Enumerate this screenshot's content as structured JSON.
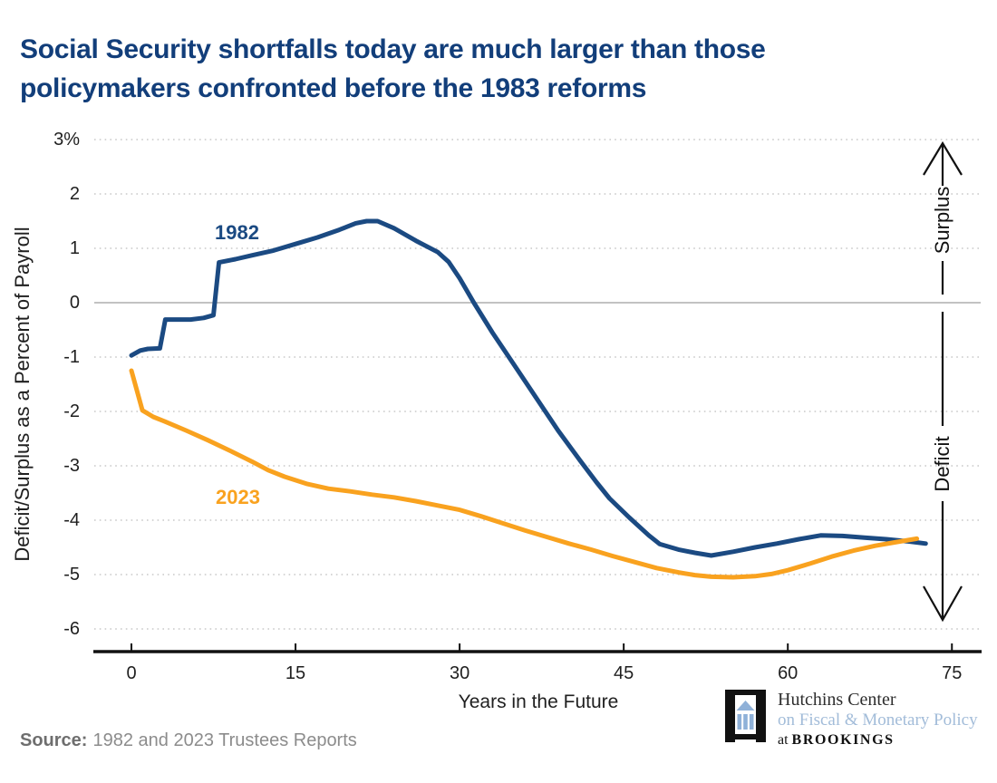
{
  "title": {
    "line1": "Social Security shortfalls today are much larger than those",
    "line2": "policymakers confronted before the 1983 reforms"
  },
  "y_axis": {
    "title": "Deficit/Surplus as a Percent of Payroll",
    "tick_labels": [
      "3%",
      "2",
      "1",
      "0",
      "-1",
      "-2",
      "-3",
      "-4",
      "-5",
      "-6"
    ]
  },
  "x_axis": {
    "title": "Years in the Future",
    "tick_labels": [
      "0",
      "15",
      "30",
      "45",
      "60",
      "75"
    ]
  },
  "annotations": {
    "surplus": "Surplus",
    "deficit": "Deficit",
    "label_1982": "1982",
    "label_2023": "2023"
  },
  "source": {
    "label": "Source:",
    "text": "1982 and 2023 Trustees Reports"
  },
  "logo": {
    "line1": "Hutchins Center",
    "line2": "on Fiscal & Monetary Policy",
    "line3_prefix": "at ",
    "line3_org": "BROOKINGS"
  },
  "colors": {
    "title_navy": "#123e7a",
    "line_1982": "#1b4a82",
    "line_2023": "#f9a21f",
    "gridline": "#c9c9c9",
    "zero_line": "#9e9e9e",
    "axis": "#111111",
    "text": "#1f1f1f",
    "source_gray": "#8c8c8c",
    "logo_blue": "#a2bcd9"
  },
  "chart_data": {
    "type": "line",
    "title": "Social Security shortfalls today are much larger than those policymakers confronted before the 1983 reforms",
    "xlabel": "Years in the Future",
    "ylabel": "Deficit/Surplus as a Percent of Payroll",
    "xlim": [
      -3.5,
      77.7
    ],
    "ylim": [
      -6.4,
      3
    ],
    "x_ticks": [
      0,
      15,
      30,
      45,
      60,
      75
    ],
    "y_ticks": [
      3,
      2,
      1,
      0,
      -1,
      -2,
      -3,
      -4,
      -5,
      -6
    ],
    "grid": "horizontal dotted, solid line at 0",
    "legend_position": "inline series labels",
    "series": [
      {
        "name": "1982",
        "color": "#1b4a82",
        "points": [
          [
            0,
            -0.97
          ],
          [
            0.8,
            -0.88
          ],
          [
            1.5,
            -0.85
          ],
          [
            2.6,
            -0.84
          ],
          [
            3.1,
            -0.31
          ],
          [
            5.4,
            -0.31
          ],
          [
            6.6,
            -0.28
          ],
          [
            7.5,
            -0.23
          ],
          [
            8.0,
            0.74
          ],
          [
            9.5,
            0.8
          ],
          [
            11,
            0.87
          ],
          [
            13,
            0.96
          ],
          [
            15,
            1.08
          ],
          [
            17,
            1.2
          ],
          [
            19,
            1.34
          ],
          [
            20.5,
            1.46
          ],
          [
            21.5,
            1.5
          ],
          [
            22.5,
            1.5
          ],
          [
            24,
            1.37
          ],
          [
            26,
            1.14
          ],
          [
            28,
            0.93
          ],
          [
            29,
            0.75
          ],
          [
            30,
            0.45
          ],
          [
            31.3,
            0.0
          ],
          [
            33,
            -0.55
          ],
          [
            35,
            -1.15
          ],
          [
            37,
            -1.75
          ],
          [
            39,
            -2.35
          ],
          [
            41,
            -2.9
          ],
          [
            42.5,
            -3.3
          ],
          [
            43.7,
            -3.6
          ],
          [
            45.5,
            -3.95
          ],
          [
            47.3,
            -4.28
          ],
          [
            48.3,
            -4.44
          ],
          [
            50,
            -4.54
          ],
          [
            51.5,
            -4.6
          ],
          [
            53,
            -4.65
          ],
          [
            55,
            -4.58
          ],
          [
            57,
            -4.5
          ],
          [
            59,
            -4.43
          ],
          [
            61,
            -4.35
          ],
          [
            63,
            -4.28
          ],
          [
            65,
            -4.29
          ],
          [
            67,
            -4.32
          ],
          [
            69,
            -4.35
          ],
          [
            71,
            -4.39
          ],
          [
            72.6,
            -4.43
          ]
        ]
      },
      {
        "name": "2023",
        "color": "#f9a21f",
        "points": [
          [
            0,
            -1.25
          ],
          [
            1,
            -1.98
          ],
          [
            2,
            -2.1
          ],
          [
            3,
            -2.18
          ],
          [
            5,
            -2.35
          ],
          [
            7,
            -2.53
          ],
          [
            9,
            -2.72
          ],
          [
            11,
            -2.92
          ],
          [
            12.5,
            -3.08
          ],
          [
            14,
            -3.2
          ],
          [
            16,
            -3.33
          ],
          [
            18,
            -3.42
          ],
          [
            20,
            -3.47
          ],
          [
            22,
            -3.53
          ],
          [
            24,
            -3.58
          ],
          [
            26,
            -3.65
          ],
          [
            28,
            -3.73
          ],
          [
            30,
            -3.81
          ],
          [
            32,
            -3.93
          ],
          [
            34,
            -4.06
          ],
          [
            36,
            -4.19
          ],
          [
            38,
            -4.31
          ],
          [
            40,
            -4.43
          ],
          [
            42,
            -4.54
          ],
          [
            44,
            -4.66
          ],
          [
            46,
            -4.77
          ],
          [
            48,
            -4.88
          ],
          [
            50,
            -4.96
          ],
          [
            51.5,
            -5.01
          ],
          [
            53,
            -5.04
          ],
          [
            55,
            -5.05
          ],
          [
            57,
            -5.03
          ],
          [
            58.5,
            -4.99
          ],
          [
            60,
            -4.92
          ],
          [
            62,
            -4.8
          ],
          [
            64,
            -4.67
          ],
          [
            66,
            -4.56
          ],
          [
            68,
            -4.47
          ],
          [
            70,
            -4.4
          ],
          [
            71.8,
            -4.34
          ]
        ]
      }
    ]
  }
}
